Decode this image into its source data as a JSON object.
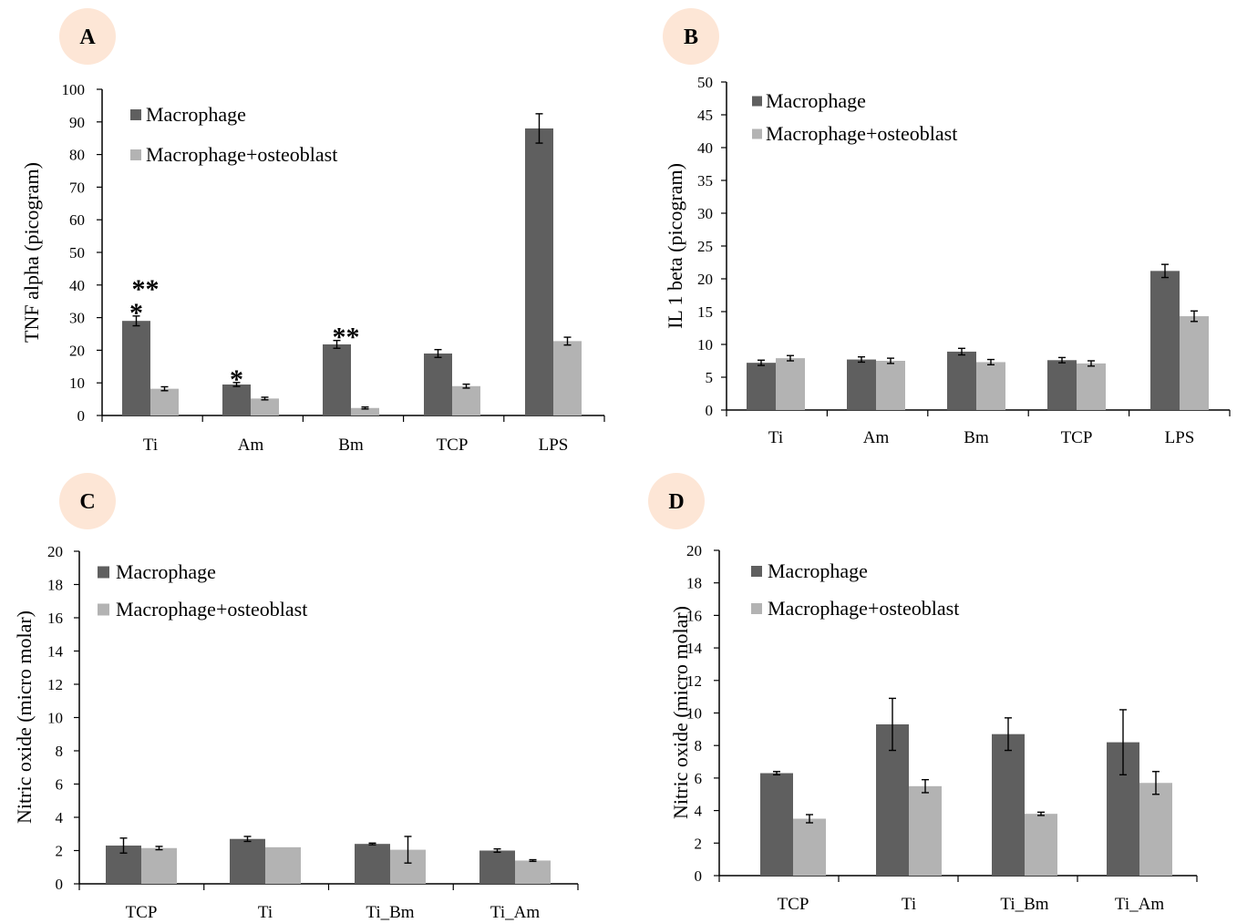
{
  "colors": {
    "macrophage": "#5f5f5f",
    "macrophage_osteoblast": "#b3b3b3",
    "panel_badge": "#fde6d6",
    "axis": "#000000"
  },
  "chart_data": [
    {
      "type": "bar",
      "panel": "A",
      "ylabel": "TNF alpha (picogram)",
      "ylim": [
        0,
        100
      ],
      "ytick_step": 10,
      "categories": [
        "Ti",
        "Am",
        "Bm",
        "TCP",
        "LPS"
      ],
      "legend": [
        "Macrophage",
        "Macrophage+osteoblast"
      ],
      "legend_position": "top-left",
      "series": [
        {
          "name": "Macrophage",
          "values": [
            29,
            9.5,
            21.8,
            19,
            88
          ],
          "errors": [
            1.5,
            0.6,
            1.2,
            1.2,
            4.5
          ]
        },
        {
          "name": "Macrophage+osteoblast",
          "values": [
            8.2,
            5.2,
            2.3,
            9,
            22.8
          ],
          "errors": [
            0.6,
            0.4,
            0.3,
            0.6,
            1.2
          ]
        }
      ],
      "annotations": [
        {
          "category": "Ti",
          "text": "**\n*"
        },
        {
          "category": "Am",
          "text": "*"
        },
        {
          "category": "Bm",
          "text": "**"
        }
      ]
    },
    {
      "type": "bar",
      "panel": "B",
      "ylabel": "IL 1 beta (picogram)",
      "ylim": [
        0,
        50
      ],
      "ytick_step": 5,
      "categories": [
        "Ti",
        "Am",
        "Bm",
        "TCP",
        "LPS"
      ],
      "legend": [
        "Macrophage",
        "Macrophage+osteoblast"
      ],
      "legend_position": "top-left",
      "series": [
        {
          "name": "Macrophage",
          "values": [
            7.2,
            7.7,
            8.9,
            7.6,
            21.2
          ],
          "errors": [
            0.4,
            0.4,
            0.5,
            0.4,
            1.0
          ]
        },
        {
          "name": "Macrophage+osteoblast",
          "values": [
            7.9,
            7.5,
            7.3,
            7.1,
            14.3
          ],
          "errors": [
            0.4,
            0.4,
            0.4,
            0.4,
            0.8
          ]
        }
      ],
      "annotations": []
    },
    {
      "type": "bar",
      "panel": "C",
      "ylabel": "Nitric oxide (micro molar)",
      "ylim": [
        0,
        20
      ],
      "ytick_step": 2,
      "categories": [
        "TCP",
        "Ti",
        "Ti_Bm",
        "Ti_Am"
      ],
      "legend": [
        "Macrophage",
        "Macrophage+osteoblast"
      ],
      "legend_position": "top-left",
      "series": [
        {
          "name": "Macrophage",
          "values": [
            2.3,
            2.7,
            2.4,
            2.0
          ],
          "errors": [
            0.45,
            0.15,
            0.05,
            0.1
          ]
        },
        {
          "name": "Macrophage+osteoblast",
          "values": [
            2.15,
            2.2,
            2.05,
            1.4
          ],
          "errors": [
            0.1,
            0,
            0.8,
            0.05
          ]
        }
      ],
      "annotations": []
    },
    {
      "type": "bar",
      "panel": "D",
      "ylabel": "Nitric oxide (micro molar)",
      "ylim": [
        0,
        20
      ],
      "ytick_step": 2,
      "categories": [
        "TCP",
        "Ti",
        "Ti_Bm",
        "Ti_Am"
      ],
      "legend": [
        "Macrophage",
        "Macrophage+osteoblast"
      ],
      "legend_position": "top-left",
      "series": [
        {
          "name": "Macrophage",
          "values": [
            6.3,
            9.3,
            8.7,
            8.2
          ],
          "errors": [
            0.1,
            1.6,
            1.0,
            2.0
          ]
        },
        {
          "name": "Macrophage+osteoblast",
          "values": [
            3.5,
            5.5,
            3.8,
            5.7
          ],
          "errors": [
            0.25,
            0.4,
            0.1,
            0.7
          ]
        }
      ],
      "annotations": []
    }
  ]
}
